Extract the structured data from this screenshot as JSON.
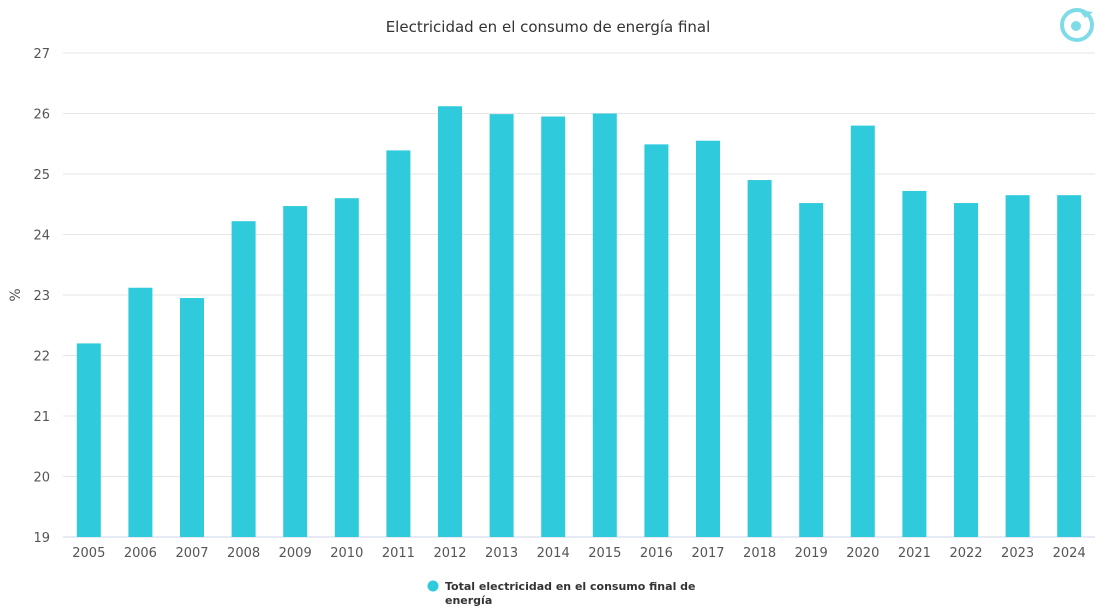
{
  "chart_data": {
    "type": "bar",
    "title": "Electricidad en el consumo de energía final",
    "ylabel": "%",
    "xlabel": "",
    "ylim": [
      19,
      27
    ],
    "yticks": [
      19,
      20,
      21,
      22,
      23,
      24,
      25,
      26,
      27
    ],
    "grid": true,
    "legend_position": "bottom-center",
    "categories": [
      "2005",
      "2006",
      "2007",
      "2008",
      "2009",
      "2010",
      "2011",
      "2012",
      "2013",
      "2014",
      "2015",
      "2016",
      "2017",
      "2018",
      "2019",
      "2020",
      "2021",
      "2022",
      "2023",
      "2024"
    ],
    "series": [
      {
        "name": "Total electricidad en el consumo final de energía",
        "legend_lines": [
          "Total electricidad en el consumo final de",
          "energía"
        ],
        "color": "#30cadd",
        "values": [
          22.2,
          23.12,
          22.95,
          24.22,
          24.47,
          24.6,
          25.39,
          26.12,
          25.99,
          25.95,
          26.0,
          25.49,
          25.55,
          24.9,
          24.52,
          25.8,
          24.72,
          24.52,
          24.65,
          24.65
        ]
      }
    ]
  },
  "colors": {
    "grid": "#e6e6e6",
    "axis_text": "#555555",
    "title_text": "#333333",
    "logo": "#7fdbe8"
  },
  "logo_icon": "brand-logo-icon"
}
